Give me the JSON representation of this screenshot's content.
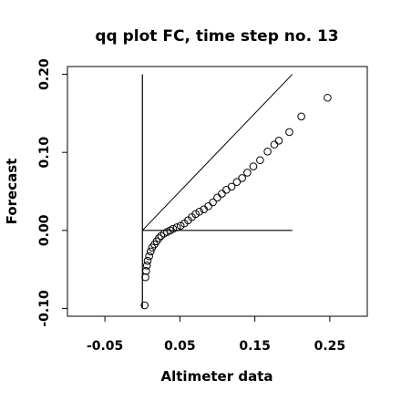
{
  "chart_data": {
    "type": "scatter",
    "title": "qq plot FC, time step no. 13",
    "xlabel": "Altimeter data",
    "ylabel": "Forecast",
    "xlim": [
      -0.1,
      0.3
    ],
    "ylim": [
      -0.11,
      0.21
    ],
    "x_ticks": [
      -0.05,
      0.05,
      0.15,
      0.25
    ],
    "x_tick_labels": [
      "-0.05",
      "0.05",
      "0.15",
      "0.25"
    ],
    "y_ticks": [
      -0.1,
      0.0,
      0.1,
      0.2
    ],
    "y_tick_labels": [
      "-0.10",
      "0.00",
      "0.10",
      "0.20"
    ],
    "grid": false,
    "reference_lines": [
      {
        "kind": "identity",
        "x": [
          0.0,
          0.2
        ],
        "y": [
          0.0,
          0.2
        ]
      },
      {
        "kind": "horizontal",
        "x": [
          0.0,
          0.2
        ],
        "y": [
          0.0,
          0.0
        ]
      },
      {
        "kind": "vertical",
        "x": [
          0.0,
          0.0
        ],
        "y": [
          -0.1,
          0.2
        ]
      }
    ],
    "points": [
      {
        "x": 0.003,
        "y": -0.096
      },
      {
        "x": 0.004,
        "y": -0.06
      },
      {
        "x": 0.005,
        "y": -0.052
      },
      {
        "x": 0.006,
        "y": -0.045
      },
      {
        "x": 0.007,
        "y": -0.039
      },
      {
        "x": 0.009,
        "y": -0.033
      },
      {
        "x": 0.011,
        "y": -0.027
      },
      {
        "x": 0.013,
        "y": -0.022
      },
      {
        "x": 0.016,
        "y": -0.018
      },
      {
        "x": 0.019,
        "y": -0.014
      },
      {
        "x": 0.022,
        "y": -0.01
      },
      {
        "x": 0.025,
        "y": -0.007
      },
      {
        "x": 0.029,
        "y": -0.004
      },
      {
        "x": 0.033,
        "y": -0.002
      },
      {
        "x": 0.037,
        "y": 0.0
      },
      {
        "x": 0.041,
        "y": 0.002
      },
      {
        "x": 0.046,
        "y": 0.004
      },
      {
        "x": 0.051,
        "y": 0.006
      },
      {
        "x": 0.056,
        "y": 0.009
      },
      {
        "x": 0.061,
        "y": 0.013
      },
      {
        "x": 0.066,
        "y": 0.017
      },
      {
        "x": 0.071,
        "y": 0.021
      },
      {
        "x": 0.076,
        "y": 0.024
      },
      {
        "x": 0.082,
        "y": 0.027
      },
      {
        "x": 0.088,
        "y": 0.031
      },
      {
        "x": 0.094,
        "y": 0.036
      },
      {
        "x": 0.1,
        "y": 0.042
      },
      {
        "x": 0.106,
        "y": 0.047
      },
      {
        "x": 0.112,
        "y": 0.052
      },
      {
        "x": 0.119,
        "y": 0.056
      },
      {
        "x": 0.126,
        "y": 0.062
      },
      {
        "x": 0.133,
        "y": 0.067
      },
      {
        "x": 0.14,
        "y": 0.074
      },
      {
        "x": 0.148,
        "y": 0.082
      },
      {
        "x": 0.157,
        "y": 0.09
      },
      {
        "x": 0.167,
        "y": 0.101
      },
      {
        "x": 0.176,
        "y": 0.11
      },
      {
        "x": 0.182,
        "y": 0.115
      },
      {
        "x": 0.196,
        "y": 0.126
      },
      {
        "x": 0.212,
        "y": 0.146
      },
      {
        "x": 0.247,
        "y": 0.17
      }
    ]
  }
}
